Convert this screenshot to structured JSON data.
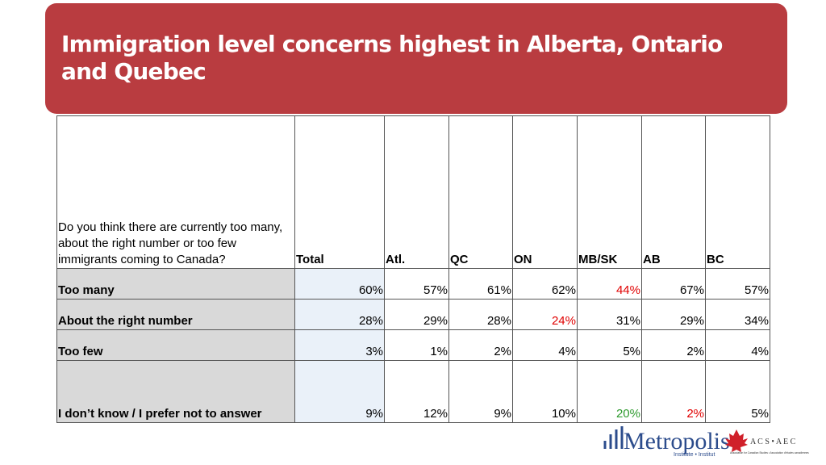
{
  "header": {
    "title": "Immigration level concerns highest in Alberta, Ontario and Quebec"
  },
  "table": {
    "question": "Do you think there are currently too many, about the right number or too few immigrants coming to Canada?",
    "columns": [
      "Total",
      "Atl.",
      "QC",
      "ON",
      "MB/SK",
      "AB",
      "BC"
    ],
    "rows": [
      {
        "label": "Too many",
        "cells": [
          "60%",
          "57%",
          "61%",
          "62%",
          "44%",
          "67%",
          "57%"
        ],
        "colors": [
          null,
          null,
          null,
          null,
          "#e00000",
          null,
          null
        ]
      },
      {
        "label": "About the right number",
        "cells": [
          "28%",
          "29%",
          "28%",
          "24%",
          "31%",
          "29%",
          "34%"
        ],
        "colors": [
          null,
          null,
          null,
          "#e00000",
          null,
          null,
          null
        ]
      },
      {
        "label": "Too few",
        "cells": [
          "3%",
          "1%",
          "2%",
          "4%",
          "5%",
          "2%",
          "4%"
        ],
        "colors": [
          null,
          null,
          null,
          null,
          null,
          null,
          null
        ]
      },
      {
        "label": "I don’t know / I prefer not to answer",
        "cells": [
          "9%",
          "12%",
          "9%",
          "10%",
          "20%",
          "2%",
          "5%"
        ],
        "colors": [
          null,
          null,
          null,
          null,
          "#2e9a2e",
          "#e00000",
          null
        ]
      }
    ]
  },
  "logo": {
    "name": "Metropolis",
    "tagline": "Institute • Institut",
    "partner": "A C S • A E C",
    "partner_sub": "Association for Canadian Studies • Association d'études canadiennes"
  }
}
